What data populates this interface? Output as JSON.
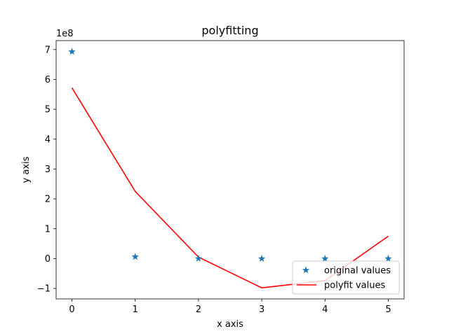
{
  "chart_data": {
    "type": "line",
    "title": "polyfitting",
    "xlabel": "x axis",
    "ylabel": "y axis",
    "y_offset_label": "1e8",
    "y_scale": 100000000,
    "xlim": [
      -0.25,
      5.25
    ],
    "ylim": [
      -135000000,
      730000000
    ],
    "xticks": [
      0,
      1,
      2,
      3,
      4,
      5
    ],
    "xtick_labels": [
      "0",
      "1",
      "2",
      "3",
      "4",
      "5"
    ],
    "yticks": [
      -100000000,
      0,
      100000000,
      200000000,
      300000000,
      400000000,
      500000000,
      600000000,
      700000000
    ],
    "ytick_labels": [
      "−1",
      "0",
      "1",
      "2",
      "3",
      "4",
      "5",
      "6",
      "7"
    ],
    "grid": false,
    "legend_position": "lower-right",
    "series": [
      {
        "name": "original values",
        "kind": "scatter",
        "marker": "star",
        "color": "#1f77b4",
        "x": [
          0,
          1,
          2,
          3,
          4,
          5
        ],
        "y": [
          693000000,
          6000000,
          100000,
          0,
          0,
          0
        ]
      },
      {
        "name": "polyfit values",
        "kind": "line",
        "color": "#ff0000",
        "x": [
          0,
          1,
          2,
          3,
          4,
          5
        ],
        "y": [
          572000000,
          225000000,
          5000000,
          -98000000,
          -74000000,
          75000000
        ]
      }
    ]
  }
}
